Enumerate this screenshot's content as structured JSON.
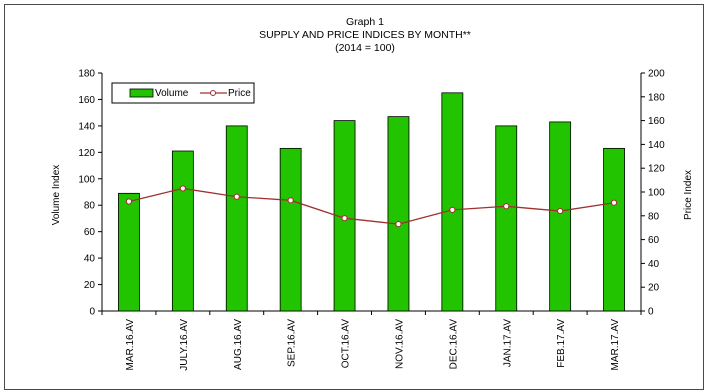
{
  "chart_data": {
    "type": "bar",
    "title_lines": [
      "Graph 1",
      "SUPPLY AND PRICE INDICES BY MONTH**",
      "(2014 = 100)"
    ],
    "categories": [
      "MAR.16.AV",
      "JULY.16.AV",
      "AUG.16.AV",
      "SEP.16.AV",
      "OCT.16.AV",
      "NOV.16.AV",
      "DEC.16.AV",
      "JAN.17.AV",
      "FEB.17.AV",
      "MAR.17.AV"
    ],
    "series": [
      {
        "name": "Volume",
        "type": "bar",
        "axis": "left",
        "color": "#22c400",
        "values": [
          89,
          121,
          140,
          123,
          144,
          147,
          165,
          140,
          143,
          123
        ]
      },
      {
        "name": "Price",
        "type": "line",
        "axis": "right",
        "color": "#a0302e",
        "values": [
          92,
          103,
          96,
          93,
          78,
          73,
          85,
          88,
          84,
          91
        ]
      }
    ],
    "ylabel_left": "Volume Index",
    "ylabel_right": "Price Index",
    "ylim_left": [
      0,
      180
    ],
    "ylim_right": [
      0,
      200
    ],
    "yticks_left": [
      "0",
      "20",
      "40",
      "60",
      "80",
      "100",
      "120",
      "140",
      "160",
      "180"
    ],
    "yticks_right": [
      "0",
      "20",
      "40",
      "60",
      "80",
      "100",
      "120",
      "140",
      "160",
      "180",
      "200"
    ],
    "legend_position": "top-left",
    "grid": false
  }
}
